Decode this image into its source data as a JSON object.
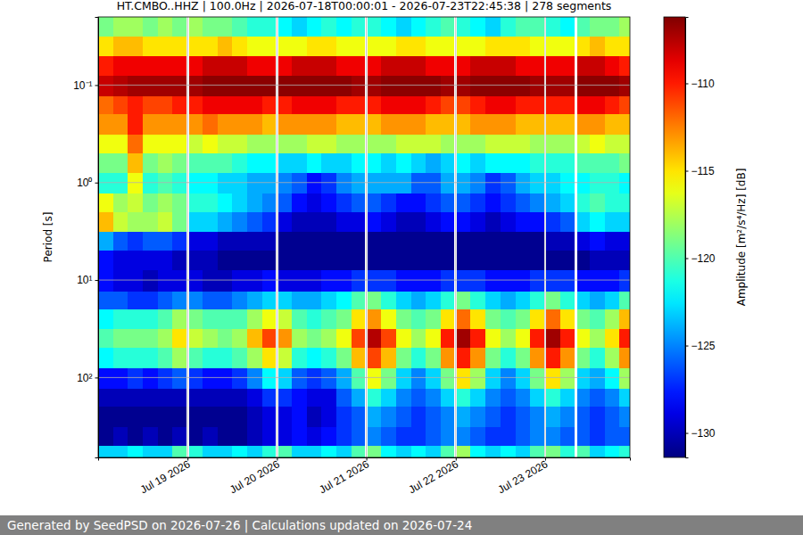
{
  "chart_data": {
    "type": "heatmap",
    "title": "HT.CMBO..HHZ | 100.0Hz | 2026-07-18T00:00:01 - 2026-07-23T22:45:38 | 278 segments",
    "footer": "Generated by SeedPSD on 2026-07-26 | Calculations updated on 2026-07-24",
    "y_label": "Period [s]",
    "colorbar_label": "Amplitude [m²/s⁴/Hz] [dB]",
    "color": "jet",
    "log": "y",
    "grid": true,
    "xlim": [
      "2026-07-18T00:00:01",
      "2026-07-23T22:45:38"
    ],
    "ylim": [
      0.02,
      660
    ],
    "xticks": [
      {
        "value": "2026-07-19",
        "label": "Jul 19 2026"
      },
      {
        "value": "2026-07-20",
        "label": "Jul 20 2026"
      },
      {
        "value": "2026-07-21",
        "label": "Jul 21 2026"
      },
      {
        "value": "2026-07-22",
        "label": "Jul 22 2026"
      },
      {
        "value": "2026-07-23",
        "label": "Jul 23 2026"
      }
    ],
    "yticks": [
      {
        "value": 0.1,
        "label": "10⁻¹"
      },
      {
        "value": 1,
        "label": "10⁰"
      },
      {
        "value": 10,
        "label": "10¹"
      },
      {
        "value": 100,
        "label": "10²"
      }
    ],
    "colorbar_range": [
      -131.4,
      -106.2
    ],
    "colorbar_ticks": [
      {
        "value": -130,
        "label": "−130"
      },
      {
        "value": -125,
        "label": "−125"
      },
      {
        "value": -120,
        "label": "−120"
      },
      {
        "value": -115,
        "label": "−115"
      },
      {
        "value": -110,
        "label": "−110"
      }
    ],
    "x_bins": [
      "2026-07-18T00:00:01",
      "2026-07-18T04:00",
      "2026-07-18T08:00",
      "2026-07-18T12:00",
      "2026-07-18T16:00",
      "2026-07-18T20:00",
      "2026-07-18T23:40",
      "2026-07-19T00:20",
      "2026-07-19T04:00",
      "2026-07-19T08:00",
      "2026-07-19T12:00",
      "2026-07-19T16:00",
      "2026-07-19T20:00",
      "2026-07-19T23:40",
      "2026-07-20T00:20",
      "2026-07-20T04:00",
      "2026-07-20T08:00",
      "2026-07-20T12:00",
      "2026-07-20T16:00",
      "2026-07-20T20:00",
      "2026-07-20T23:40",
      "2026-07-21T00:20",
      "2026-07-21T04:00",
      "2026-07-21T08:00",
      "2026-07-21T12:00",
      "2026-07-21T16:00",
      "2026-07-21T20:00",
      "2026-07-21T23:40",
      "2026-07-22T00:20",
      "2026-07-22T04:00",
      "2026-07-22T08:00",
      "2026-07-22T12:00",
      "2026-07-22T16:00",
      "2026-07-22T20:00",
      "2026-07-22T23:40",
      "2026-07-23T00:20",
      "2026-07-23T04:00",
      "2026-07-23T08:00",
      "2026-07-23T08:40",
      "2026-07-23T12:00",
      "2026-07-23T16:00",
      "2026-07-23T20:00",
      "2026-07-23T22:45:38"
    ],
    "y_bins": [
      0.02,
      0.032,
      0.05,
      0.08,
      0.13,
      0.2,
      0.32,
      0.5,
      0.8,
      1.3,
      2,
      3.2,
      5,
      8,
      13,
      20,
      32,
      50,
      80,
      130,
      200,
      320,
      500,
      660
    ],
    "cells": [
      [
        -119,
        -118,
        -118,
        -119,
        -118,
        -119,
        null,
        -118,
        -119,
        -119,
        -120,
        -121,
        -121,
        null,
        -122,
        -123,
        -122,
        -121,
        -122,
        -121,
        null,
        -121,
        -122,
        -123,
        -122,
        -121,
        -120,
        null,
        -121,
        -122,
        -123,
        -121,
        -120,
        -120,
        null,
        -121,
        -122,
        null,
        -120,
        -119,
        -119,
        -118
      ],
      [
        -115,
        -114,
        -114,
        -115,
        -115,
        -115,
        null,
        -115,
        -115,
        -114,
        -115,
        -116,
        -116,
        null,
        -116,
        -116,
        -115,
        -115,
        -116,
        -116,
        null,
        -116,
        -116,
        -115,
        -115,
        -116,
        -116,
        null,
        -116,
        -116,
        -115,
        -115,
        -115,
        -116,
        null,
        -116,
        -116,
        null,
        -115,
        -114,
        -115,
        -115
      ],
      [
        -110,
        -109,
        -109,
        -109,
        -109,
        -109,
        null,
        -109,
        -108,
        -108,
        -108,
        -109,
        -109,
        null,
        -109,
        -108,
        -108,
        -108,
        -109,
        -109,
        null,
        -109,
        -108,
        -108,
        -108,
        -109,
        -109,
        null,
        -109,
        -108,
        -108,
        -108,
        -109,
        -109,
        null,
        -109,
        -109,
        null,
        -108,
        -108,
        -109,
        -110
      ],
      [
        -108,
        -107.5,
        -107,
        -107,
        -107,
        -107,
        null,
        -107,
        -106.5,
        -106.5,
        -106.5,
        -106.5,
        -106.5,
        null,
        -106.5,
        -106.5,
        -106.5,
        -106.5,
        -106.5,
        -107,
        null,
        -107,
        -106.5,
        -106.5,
        -106.5,
        -106.5,
        -107,
        null,
        -107,
        -106.5,
        -106.5,
        -106.5,
        -106.5,
        -107,
        null,
        -107,
        -107,
        null,
        -106.5,
        -106.5,
        -106.5,
        -107
      ],
      [
        -112,
        -111,
        -110,
        -111,
        -111,
        -110,
        null,
        -110,
        -109,
        -109,
        -109,
        -109,
        -110,
        null,
        -110,
        -109,
        -109,
        -109,
        -110,
        -110,
        null,
        -110,
        -109,
        -109,
        -109,
        -110,
        -111,
        null,
        -111,
        -110,
        -109,
        -109,
        -110,
        -110,
        null,
        -110,
        -110,
        null,
        -109,
        -109,
        -110,
        -111
      ],
      [
        -113,
        -113,
        -110,
        -113,
        -113,
        -113,
        null,
        -113,
        -112,
        -113,
        -113,
        -113,
        -114,
        null,
        -113,
        -113,
        -113,
        -113,
        -114,
        -114,
        null,
        -114,
        -113,
        -113,
        -113,
        -114,
        -114,
        null,
        -114,
        -113,
        -113,
        -113,
        -114,
        -114,
        null,
        -114,
        -114,
        null,
        -113,
        -113,
        -114,
        -114
      ],
      [
        -116,
        -116,
        -112,
        -116,
        -116,
        -116,
        null,
        -117,
        -116,
        -117,
        -117,
        -118,
        -118,
        null,
        -118,
        -118,
        -117,
        -117,
        -118,
        -118,
        null,
        -118,
        -118,
        -117,
        -117,
        -117,
        -118,
        null,
        -118,
        -118,
        -117,
        -117,
        -117,
        -118,
        null,
        -118,
        -118,
        null,
        -117,
        -116,
        -117,
        -117
      ],
      [
        -119,
        -119,
        -114,
        -119,
        -118,
        -119,
        null,
        -120,
        -120,
        -120,
        -121,
        -122,
        -122,
        null,
        -123,
        -123,
        -122,
        -123,
        -123,
        -122,
        null,
        -122,
        -123,
        -122,
        -123,
        -124,
        -123,
        null,
        -122,
        -123,
        -122,
        -122,
        -122,
        -121,
        null,
        -121,
        -121,
        null,
        -120,
        -120,
        -120,
        -119
      ],
      [
        -121,
        -121,
        -116,
        -121,
        -120,
        -121,
        null,
        -122,
        -122,
        -123,
        -123,
        -124,
        -124,
        null,
        -125,
        -126,
        -128,
        -127,
        -125,
        -124,
        null,
        -124,
        -124,
        -124,
        -126,
        -126,
        -124,
        null,
        -124,
        -125,
        -127,
        -126,
        -124,
        -123,
        null,
        -123,
        -122,
        null,
        -122,
        -121,
        -121,
        -122
      ],
      [
        -116,
        -118,
        -117,
        -119,
        -118,
        -119,
        null,
        -121,
        -121,
        -122,
        -123,
        -124,
        -125,
        null,
        -126,
        -128,
        -129,
        -128,
        -127,
        -126,
        null,
        -126,
        -127,
        -128,
        -128,
        -127,
        -126,
        null,
        -126,
        -127,
        -128,
        -127,
        -126,
        -125,
        null,
        -124,
        -123,
        null,
        -121,
        -120,
        -121,
        -121
      ],
      [
        -114,
        -117,
        -118,
        -118,
        -117,
        -119,
        null,
        -123,
        -123,
        -124,
        -125,
        -126,
        -127,
        null,
        -129,
        -130,
        -130,
        -130,
        -129,
        -129,
        null,
        -128,
        -129,
        -130,
        -130,
        -129,
        -128,
        null,
        -128,
        -129,
        -130,
        -129,
        -128,
        -128,
        null,
        -127,
        -126,
        null,
        -123,
        -122,
        -123,
        -123
      ],
      [
        -124,
        -126,
        -127,
        -126,
        -126,
        -127,
        null,
        -129,
        -129,
        -130,
        -130,
        -130,
        -130,
        null,
        -131,
        -131,
        -131,
        -131,
        -131,
        -131,
        null,
        -131,
        -131,
        -131,
        -131,
        -131,
        -131,
        null,
        -131,
        -131,
        -131,
        -131,
        -131,
        -131,
        null,
        -130,
        -130,
        null,
        -129,
        -128,
        -129,
        -129
      ],
      [
        -128,
        -129,
        -129,
        -129,
        -129,
        -130,
        null,
        -130,
        -130,
        -131,
        -131,
        -131,
        -131,
        null,
        -131,
        -131,
        -131,
        -131,
        -131,
        -131,
        null,
        -131,
        -131,
        -131,
        -131,
        -131,
        -131,
        null,
        -131,
        -131,
        -131,
        -131,
        -131,
        -131,
        null,
        -131,
        -131,
        null,
        -131,
        -130,
        -130,
        -130
      ],
      [
        -128,
        -129,
        -129,
        -130,
        -129,
        -129,
        null,
        -129,
        -130,
        -130,
        -129,
        -129,
        -128,
        null,
        -129,
        -129,
        -129,
        -128,
        -128,
        -127,
        null,
        -127,
        -127,
        -128,
        -128,
        -128,
        -127,
        null,
        -127,
        -127,
        -128,
        -128,
        -128,
        -127,
        null,
        -127,
        -127,
        null,
        -128,
        -128,
        -128,
        -127
      ],
      [
        -126,
        -126,
        -127,
        -127,
        -126,
        -125,
        null,
        -125,
        -126,
        -126,
        -125,
        -124,
        -123,
        null,
        -123,
        -124,
        -124,
        -123,
        -122,
        -120,
        null,
        -119,
        -121,
        -123,
        -124,
        -123,
        -121,
        null,
        -119,
        -121,
        -123,
        -124,
        -123,
        -121,
        null,
        -119,
        -121,
        null,
        -123,
        -124,
        -123,
        -120
      ],
      [
        -122,
        -121,
        -121,
        -121,
        -120,
        -118,
        null,
        -119,
        -120,
        -120,
        -120,
        -118,
        -116,
        null,
        -117,
        -120,
        -121,
        -120,
        -119,
        -115,
        null,
        -113,
        -116,
        -119,
        -120,
        -119,
        -115,
        null,
        -112,
        -115,
        -119,
        -120,
        -119,
        -115,
        null,
        -112,
        -115,
        null,
        -119,
        -120,
        -118,
        -114
      ],
      [
        -120,
        -119,
        -119,
        -119,
        -118,
        -115,
        null,
        -117,
        -118,
        -119,
        -118,
        -114,
        -111,
        null,
        -113,
        -118,
        -119,
        -118,
        -116,
        -111,
        null,
        -107.5,
        -111,
        -116,
        -118,
        -116,
        -110,
        null,
        -107,
        -110,
        -116,
        -118,
        -116,
        -110,
        null,
        -107,
        -110,
        null,
        -116,
        -118,
        -115,
        -110
      ],
      [
        -122,
        -121,
        -121,
        -121,
        -120,
        -118,
        null,
        -120,
        -121,
        -121,
        -120,
        -118,
        -115,
        null,
        -117,
        -121,
        -122,
        -121,
        -119,
        -114,
        null,
        -111,
        -114,
        -119,
        -121,
        -119,
        -113,
        null,
        -110,
        -113,
        -119,
        -121,
        -119,
        -113,
        null,
        -110,
        -113,
        null,
        -119,
        -121,
        -118,
        -113
      ],
      [
        -128,
        -128,
        -127,
        -128,
        -127,
        -126,
        null,
        -127,
        -128,
        -128,
        -127,
        -125,
        -122,
        null,
        -123,
        -126,
        -127,
        -126,
        -124,
        -120,
        null,
        -116,
        -119,
        -123,
        -125,
        -123,
        -119,
        null,
        -115,
        -118,
        -123,
        -125,
        -123,
        -119,
        null,
        -115,
        -118,
        null,
        -123,
        -124,
        -122,
        -118
      ],
      [
        -130,
        -130,
        -130,
        -130,
        -130,
        -130,
        null,
        -130,
        -130,
        -130,
        -130,
        -129,
        -127,
        null,
        -127,
        -128,
        -129,
        -129,
        -126,
        -124,
        null,
        -121,
        -123,
        -125,
        -126,
        -125,
        -123,
        null,
        -121,
        -123,
        -125,
        -126,
        -125,
        -123,
        null,
        -121,
        -123,
        null,
        -125,
        -126,
        -125,
        -123
      ],
      [
        -131,
        -131,
        -131,
        -131,
        -131,
        -131,
        null,
        -131,
        -131,
        -131,
        -131,
        -130,
        -129,
        null,
        -129,
        -128,
        -130,
        -129,
        -127,
        -126,
        null,
        -124,
        -125,
        -126,
        -127,
        -126,
        -125,
        null,
        -124,
        -125,
        -126,
        -127,
        -126,
        -125,
        null,
        -124,
        -125,
        null,
        -126,
        -127,
        -126,
        -125
      ],
      [
        -131,
        -130,
        -131,
        -130,
        -131,
        -130,
        null,
        -131,
        -130,
        -131,
        -131,
        -130,
        -129,
        null,
        -129,
        -128,
        -129,
        -128,
        -127,
        -126,
        null,
        -125,
        -126,
        -127,
        -127,
        -126,
        -125,
        null,
        -125,
        -126,
        -127,
        -127,
        -126,
        -125,
        null,
        -125,
        -126,
        null,
        -126,
        -127,
        -126,
        -126
      ],
      [
        -123,
        -123,
        -122,
        -123,
        -123,
        -120,
        null,
        -121,
        -123,
        -123,
        -122,
        -123,
        -121,
        null,
        -120,
        -123,
        -123,
        -122,
        -123,
        -120,
        null,
        -119,
        -122,
        -123,
        -122,
        -123,
        -120,
        null,
        -118,
        -122,
        -123,
        -122,
        -123,
        -120,
        null,
        -119,
        -121,
        null,
        -120,
        -123,
        -122,
        -121
      ]
    ]
  }
}
